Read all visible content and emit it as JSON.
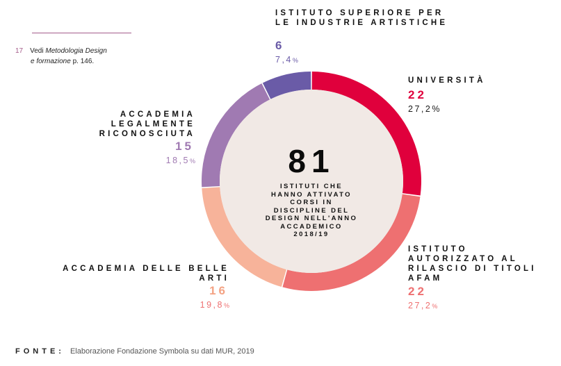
{
  "footnote": {
    "number": "17",
    "prefix": "Vedi",
    "title": "Metodologia Design",
    "title_cont": "e formazione",
    "suffix": "p. 146."
  },
  "colors": {
    "background": "#ffffff",
    "center_fill": "#f1e9e5",
    "universita": "#e0003c",
    "afam": "#ee7071",
    "belle_arti": "#f7b39a",
    "legalmente": "#a07ab2",
    "industrie_artistiche": "#6a5ba7"
  },
  "chart_data": {
    "type": "pie",
    "variant": "donut",
    "total": 81,
    "total_label": "81",
    "center_caption": "ISTITUTI CHE\nHANNO ATTIVATO\nCORSI IN\nDISCIPLINE DEL\nDESIGN NELL'ANNO\nACCADEMICO\n2018/19",
    "slices": [
      {
        "key": "universita",
        "label": "UNIVERSITÀ",
        "value": 22,
        "value_label": "22",
        "pct_label": "27,2%"
      },
      {
        "key": "afam",
        "label": "ISTITUTO AUTORIZZATO AL RILASCIO DI TITOLI AFAM",
        "value": 22,
        "value_label": "22",
        "pct_label": "27,2",
        "pct_unit": "%"
      },
      {
        "key": "belle_arti",
        "label": "ACCADEMIA DELLE BELLE ARTI",
        "value": 16,
        "value_label": "16",
        "pct_label": "19,8",
        "pct_unit": "%"
      },
      {
        "key": "legalmente",
        "label": "ACCADEMIA LEGALMENTE RICONOSCIUTA",
        "value": 15,
        "value_label": "15",
        "pct_label": "18,5",
        "pct_unit": "%"
      },
      {
        "key": "industrie_artistiche",
        "label": "ISTITUTO SUPERIORE PER LE INDUSTRIE ARTISTICHE",
        "value": 6,
        "value_label": "6",
        "pct_label": "7,4",
        "pct_unit": "%"
      }
    ]
  },
  "source": {
    "label": "FONTE:",
    "text": "Elaborazione Fondazione Symbola su dati MUR, 2019"
  }
}
